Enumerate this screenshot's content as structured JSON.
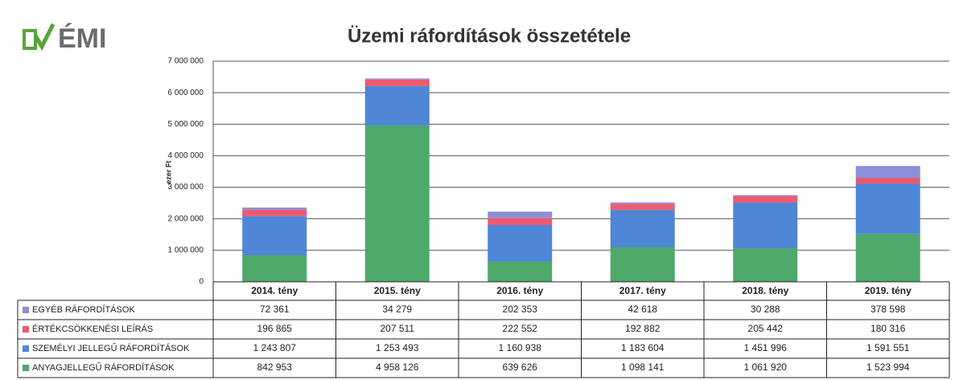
{
  "logo": "ÉMI",
  "chart_data": {
    "type": "bar",
    "stacked": true,
    "title": "Üzemi ráfordítások összetétele",
    "y_label": "ezer Ft",
    "categories": [
      "2014. tény",
      "2015. tény",
      "2016. tény",
      "2017. tény",
      "2018. tény",
      "2019. tény"
    ],
    "series": [
      {
        "name": "EGYÉB RÁFORDÍTÁSOK",
        "color": "#8a8fd6",
        "values": [
          72361,
          34279,
          202353,
          42618,
          30288,
          378598
        ],
        "value_labels": [
          "72 361",
          "34 279",
          "202 353",
          "42 618",
          "30 288",
          "378 598"
        ]
      },
      {
        "name": "ÉRTÉKCSÖKKENÉSI LEÍRÁS",
        "color": "#ee5a6f",
        "values": [
          196865,
          207511,
          222552,
          192882,
          205442,
          180316
        ],
        "value_labels": [
          "196 865",
          "207 511",
          "222 552",
          "192 882",
          "205 442",
          "180 316"
        ]
      },
      {
        "name": "SZEMÉLYI JELLEGŰ RÁFORDÍTÁSOK",
        "color": "#4f86d6",
        "values": [
          1243807,
          1253493,
          1160938,
          1183604,
          1451996,
          1591551
        ],
        "value_labels": [
          "1 243 807",
          "1 253 493",
          "1 160 938",
          "1 183 604",
          "1 451 996",
          "1 591 551"
        ]
      },
      {
        "name": "ANYAGJELLEGŰ RÁFORDÍTÁSOK",
        "color": "#4fa96a",
        "values": [
          842953,
          4958126,
          639626,
          1098141,
          1061920,
          1523994
        ],
        "value_labels": [
          "842 953",
          "4 958 126",
          "639 626",
          "1 098 141",
          "1 061 920",
          "1 523 994"
        ]
      }
    ],
    "ylim": [
      0,
      7000000
    ],
    "yticks": [
      0,
      {
        "value": 1000000,
        "label": "1 000 000"
      },
      {
        "value": 2000000,
        "label": "2 000 000"
      },
      {
        "value": 3000000,
        "label": "3 000 000"
      },
      {
        "value": 4000000,
        "label": "4 000 000"
      },
      {
        "value": 5000000,
        "label": "5 000 000"
      },
      {
        "value": 6000000,
        "label": "6 000 000"
      },
      {
        "value": 7000000,
        "label": "7 000 000"
      }
    ],
    "grid": true
  }
}
